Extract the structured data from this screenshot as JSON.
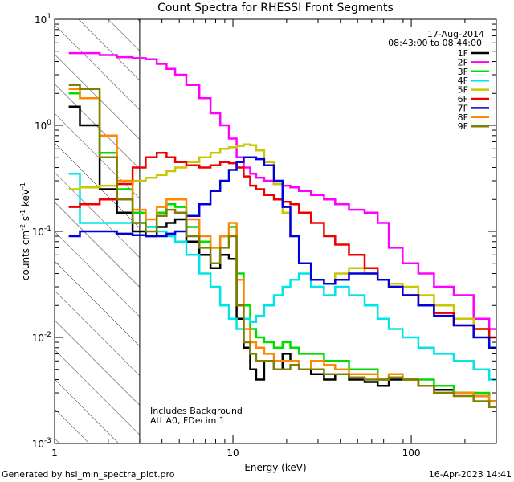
{
  "chart_data": {
    "type": "line",
    "title": "Count Spectra for RHESSI Front Segments",
    "xlabel": "Energy (keV)",
    "ylabel_parts": {
      "counts": "counts cm",
      "exp1": "-2",
      "s": " s",
      "exp2": "-1",
      "kev": " keV",
      "exp3": "-1"
    },
    "x_scale": "log",
    "y_scale": "log",
    "xlim": [
      1,
      300
    ],
    "ylim": [
      0.001,
      10
    ],
    "x_ticks": [
      {
        "value": 1,
        "label": "1"
      },
      {
        "value": 10,
        "label": "10"
      },
      {
        "value": 100,
        "label": "100"
      }
    ],
    "y_ticks": [
      {
        "value": 10,
        "base": "10",
        "exp": "1"
      },
      {
        "value": 1,
        "base": "10",
        "exp": "0"
      },
      {
        "value": 0.1,
        "base": "10",
        "exp": "-1"
      },
      {
        "value": 0.01,
        "base": "10",
        "exp": "-2"
      },
      {
        "value": 0.001,
        "base": "10",
        "exp": "-3"
      }
    ],
    "date": "17-Aug-2014",
    "time_range": "08:43:00 to 08:44:00",
    "annotation_line1": "Includes Background",
    "annotation_line2": "Att A0, FDecim 1",
    "hatched_region_max_kev": 3,
    "footer_left": "Generated by hsi_min_spectra_plot.pro",
    "footer_right": "16-Apr-2023 14:41",
    "energies": [
      1.2,
      1.6,
      2,
      2.5,
      3,
      3.5,
      4,
      4.5,
      5,
      6,
      7,
      8,
      9,
      10,
      11,
      12,
      13,
      14,
      16,
      18,
      20,
      22,
      25,
      30,
      35,
      40,
      50,
      60,
      70,
      80,
      100,
      120,
      150,
      200,
      250,
      300
    ],
    "series": [
      {
        "name": "1F",
        "color": "#000000",
        "values": [
          1.5,
          1.0,
          0.25,
          0.15,
          0.1,
          0.09,
          0.11,
          0.12,
          0.13,
          0.08,
          0.06,
          0.045,
          0.06,
          0.055,
          0.015,
          0.008,
          0.005,
          0.004,
          0.006,
          0.005,
          0.007,
          0.006,
          0.005,
          0.0045,
          0.004,
          0.0045,
          0.004,
          0.0038,
          0.0035,
          0.004,
          0.004,
          0.0035,
          0.0032,
          0.003,
          0.0028,
          0.0025
        ]
      },
      {
        "name": "2F",
        "color": "#ff00ff",
        "values": [
          4.8,
          4.8,
          4.6,
          4.4,
          4.3,
          4.2,
          3.8,
          3.4,
          3.0,
          2.4,
          1.8,
          1.3,
          1.0,
          0.75,
          0.5,
          0.4,
          0.35,
          0.32,
          0.3,
          0.28,
          0.27,
          0.26,
          0.24,
          0.22,
          0.2,
          0.18,
          0.16,
          0.15,
          0.12,
          0.07,
          0.05,
          0.04,
          0.03,
          0.025,
          0.015,
          0.012
        ]
      },
      {
        "name": "3F",
        "color": "#00dd00",
        "values": [
          2.0,
          1.8,
          0.55,
          0.25,
          0.15,
          0.11,
          0.15,
          0.18,
          0.17,
          0.11,
          0.08,
          0.07,
          0.09,
          0.11,
          0.04,
          0.02,
          0.012,
          0.01,
          0.009,
          0.008,
          0.009,
          0.008,
          0.007,
          0.007,
          0.006,
          0.006,
          0.005,
          0.005,
          0.004,
          0.0045,
          0.004,
          0.004,
          0.0035,
          0.003,
          0.003,
          0.0025
        ]
      },
      {
        "name": "4F",
        "color": "#00e5e5",
        "values": [
          0.35,
          0.12,
          0.12,
          0.12,
          0.12,
          0.11,
          0.1,
          0.09,
          0.08,
          0.06,
          0.04,
          0.03,
          0.02,
          0.015,
          0.012,
          0.015,
          0.014,
          0.016,
          0.02,
          0.025,
          0.03,
          0.035,
          0.04,
          0.03,
          0.025,
          0.03,
          0.025,
          0.02,
          0.015,
          0.012,
          0.01,
          0.008,
          0.007,
          0.006,
          0.005,
          0.004
        ]
      },
      {
        "name": "5F",
        "color": "#c8c800",
        "values": [
          0.25,
          0.26,
          0.27,
          0.28,
          0.3,
          0.32,
          0.34,
          0.37,
          0.4,
          0.45,
          0.5,
          0.55,
          0.6,
          0.62,
          0.64,
          0.66,
          0.65,
          0.58,
          0.45,
          0.28,
          0.15,
          0.09,
          0.05,
          0.035,
          0.032,
          0.04,
          0.045,
          0.04,
          0.035,
          0.032,
          0.03,
          0.025,
          0.02,
          0.015,
          0.012,
          0.01
        ]
      },
      {
        "name": "6F",
        "color": "#ee0000",
        "values": [
          0.17,
          0.18,
          0.2,
          0.28,
          0.4,
          0.5,
          0.55,
          0.5,
          0.45,
          0.42,
          0.4,
          0.42,
          0.45,
          0.44,
          0.4,
          0.33,
          0.27,
          0.25,
          0.22,
          0.2,
          0.19,
          0.18,
          0.15,
          0.12,
          0.09,
          0.075,
          0.06,
          0.045,
          0.035,
          0.03,
          0.025,
          0.02,
          0.017,
          0.013,
          0.012,
          0.01
        ]
      },
      {
        "name": "7F",
        "color": "#0000dd",
        "values": [
          0.09,
          0.1,
          0.1,
          0.095,
          0.092,
          0.09,
          0.09,
          0.095,
          0.1,
          0.14,
          0.18,
          0.24,
          0.3,
          0.38,
          0.45,
          0.5,
          0.5,
          0.48,
          0.42,
          0.3,
          0.17,
          0.09,
          0.05,
          0.035,
          0.032,
          0.035,
          0.04,
          0.04,
          0.035,
          0.03,
          0.025,
          0.02,
          0.016,
          0.013,
          0.01,
          0.008
        ]
      },
      {
        "name": "8F",
        "color": "#ff8800",
        "values": [
          2.2,
          1.8,
          0.8,
          0.3,
          0.16,
          0.13,
          0.17,
          0.2,
          0.2,
          0.13,
          0.09,
          0.07,
          0.09,
          0.12,
          0.035,
          0.012,
          0.009,
          0.008,
          0.007,
          0.006,
          0.006,
          0.006,
          0.005,
          0.006,
          0.0055,
          0.005,
          0.0045,
          0.0045,
          0.004,
          0.0045,
          0.004,
          0.0035,
          0.003,
          0.003,
          0.0028,
          0.0025
        ]
      },
      {
        "name": "9F",
        "color": "#808000",
        "values": [
          2.4,
          2.2,
          0.5,
          0.2,
          0.12,
          0.1,
          0.14,
          0.16,
          0.15,
          0.09,
          0.07,
          0.05,
          0.07,
          0.09,
          0.02,
          0.009,
          0.007,
          0.006,
          0.006,
          0.005,
          0.005,
          0.0055,
          0.005,
          0.005,
          0.0045,
          0.0045,
          0.0042,
          0.004,
          0.004,
          0.0042,
          0.004,
          0.0035,
          0.003,
          0.0028,
          0.0025,
          0.0022
        ]
      }
    ]
  }
}
